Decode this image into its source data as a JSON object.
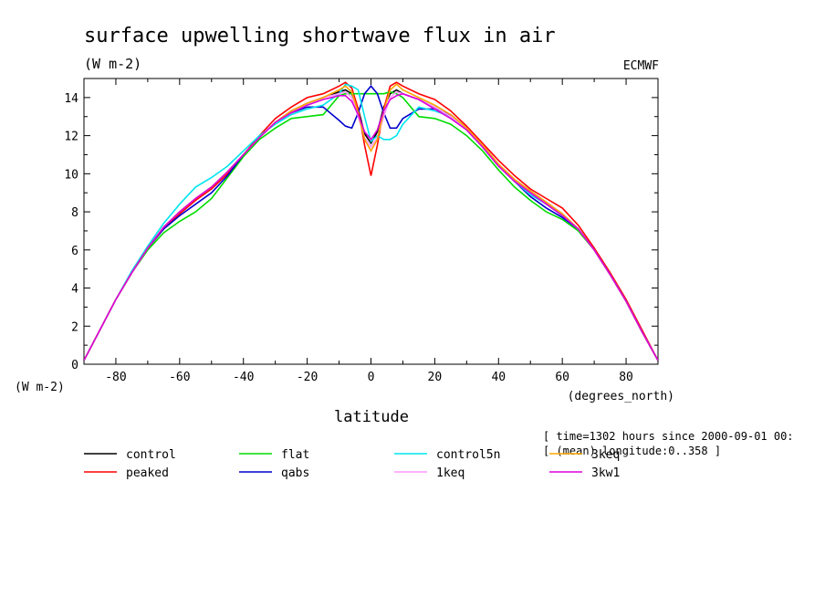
{
  "chart_data": {
    "type": "line",
    "title": "surface upwelling shortwave flux in air",
    "units": "(W m-2)",
    "source": "ECMWF",
    "ylabel": "(W m-2)",
    "xlabel": "latitude",
    "x_units": "(degrees_north)",
    "xlim": [
      -90,
      90
    ],
    "ylim": [
      0,
      15
    ],
    "x_ticks": [
      -80,
      -60,
      -40,
      -20,
      0,
      20,
      40,
      60,
      80
    ],
    "y_ticks": [
      0,
      2,
      4,
      6,
      8,
      10,
      12,
      14
    ],
    "grid": false,
    "legend_position": "bottom",
    "annotations": [
      "[ time=1302 hours since 2000-09-01 00:",
      "[ (mean) longitude:0..358 ]"
    ],
    "x": [
      -90,
      -85,
      -80,
      -75,
      -70,
      -65,
      -60,
      -55,
      -50,
      -45,
      -40,
      -35,
      -30,
      -25,
      -20,
      -15,
      -10,
      -8,
      -6,
      -4,
      -2,
      0,
      2,
      4,
      6,
      8,
      10,
      15,
      20,
      25,
      30,
      35,
      40,
      45,
      50,
      55,
      60,
      65,
      70,
      75,
      80,
      85,
      90
    ],
    "series": [
      {
        "name": "control",
        "color": "#000000",
        "values": [
          0.2,
          1.8,
          3.4,
          4.8,
          6.1,
          7.2,
          8.0,
          8.7,
          9.3,
          10.1,
          11.0,
          11.9,
          12.7,
          13.3,
          13.7,
          14.0,
          14.3,
          14.4,
          14.2,
          13.4,
          12.1,
          11.6,
          12.2,
          13.5,
          14.2,
          14.4,
          14.2,
          13.9,
          13.5,
          13.0,
          12.4,
          11.5,
          10.5,
          9.7,
          9.1,
          8.5,
          7.9,
          7.1,
          6.0,
          4.7,
          3.3,
          1.7,
          0.2
        ]
      },
      {
        "name": "peaked",
        "color": "#ff0000",
        "values": [
          0.2,
          1.8,
          3.4,
          4.8,
          6.1,
          7.1,
          7.9,
          8.6,
          9.2,
          10.0,
          11.0,
          12.0,
          12.9,
          13.5,
          14.0,
          14.2,
          14.6,
          14.8,
          14.5,
          13.4,
          11.5,
          9.9,
          11.5,
          13.4,
          14.6,
          14.8,
          14.6,
          14.2,
          13.9,
          13.3,
          12.5,
          11.6,
          10.7,
          9.9,
          9.2,
          8.7,
          8.2,
          7.3,
          6.1,
          4.8,
          3.4,
          1.8,
          0.2
        ]
      },
      {
        "name": "flat",
        "color": "#00dd00",
        "values": [
          0.2,
          1.8,
          3.4,
          4.8,
          6.0,
          6.9,
          7.5,
          8.0,
          8.7,
          9.8,
          10.9,
          11.8,
          12.4,
          12.9,
          13.0,
          13.1,
          14.1,
          14.2,
          14.2,
          14.2,
          14.2,
          14.2,
          14.2,
          14.2,
          14.3,
          14.2,
          14.0,
          13.0,
          12.9,
          12.6,
          12.0,
          11.2,
          10.2,
          9.3,
          8.6,
          8.0,
          7.6,
          7.0,
          6.0,
          4.7,
          3.3,
          1.7,
          0.2
        ]
      },
      {
        "name": "qabs",
        "color": "#0000cc",
        "values": [
          0.2,
          1.8,
          3.4,
          4.8,
          6.1,
          7.1,
          7.8,
          8.4,
          9.0,
          9.9,
          11.0,
          11.9,
          12.7,
          13.2,
          13.5,
          13.5,
          12.8,
          12.5,
          12.4,
          13.2,
          14.2,
          14.6,
          14.2,
          13.2,
          12.4,
          12.4,
          12.9,
          13.4,
          13.4,
          13.1,
          12.4,
          11.4,
          10.4,
          9.6,
          8.8,
          8.2,
          7.7,
          7.1,
          6.0,
          4.7,
          3.3,
          1.7,
          0.2
        ]
      },
      {
        "name": "control5n",
        "color": "#00e5ee",
        "values": [
          0.2,
          1.8,
          3.4,
          4.9,
          6.2,
          7.4,
          8.4,
          9.3,
          9.8,
          10.4,
          11.2,
          12.0,
          12.6,
          13.1,
          13.4,
          13.6,
          14.2,
          14.7,
          14.6,
          14.4,
          13.0,
          11.7,
          12.0,
          11.8,
          11.8,
          12.0,
          12.6,
          13.5,
          13.3,
          13.0,
          12.3,
          11.4,
          10.4,
          9.6,
          8.9,
          8.4,
          7.8,
          7.1,
          6.0,
          4.7,
          3.3,
          1.7,
          0.2
        ]
      },
      {
        "name": "1keq",
        "color": "#ff99ff",
        "values": [
          0.2,
          1.8,
          3.4,
          4.8,
          6.1,
          7.2,
          8.0,
          8.7,
          9.3,
          10.1,
          11.0,
          11.9,
          12.7,
          13.3,
          13.7,
          14.0,
          14.2,
          14.3,
          14.0,
          13.0,
          11.9,
          11.4,
          11.9,
          13.0,
          14.0,
          14.3,
          14.2,
          13.9,
          13.5,
          13.0,
          12.4,
          11.5,
          10.5,
          9.7,
          9.1,
          8.5,
          7.9,
          7.1,
          6.0,
          4.7,
          3.3,
          1.7,
          0.2
        ]
      },
      {
        "name": "3keq",
        "color": "#ffa500",
        "values": [
          0.2,
          1.8,
          3.4,
          4.8,
          6.1,
          7.2,
          8.0,
          8.7,
          9.3,
          10.1,
          11.0,
          11.9,
          12.7,
          13.3,
          13.7,
          14.0,
          14.4,
          14.6,
          14.3,
          13.2,
          11.8,
          11.2,
          11.8,
          13.3,
          14.4,
          14.7,
          14.4,
          14.0,
          13.6,
          13.1,
          12.4,
          11.5,
          10.5,
          9.7,
          9.1,
          8.5,
          7.9,
          7.1,
          6.0,
          4.7,
          3.3,
          1.7,
          0.2
        ]
      },
      {
        "name": "3kw1",
        "color": "#dd00dd",
        "values": [
          0.2,
          1.8,
          3.4,
          4.8,
          6.1,
          7.2,
          8.0,
          8.7,
          9.3,
          10.1,
          11.0,
          11.9,
          12.7,
          13.2,
          13.6,
          13.9,
          14.1,
          14.1,
          13.8,
          13.1,
          12.2,
          11.8,
          12.3,
          13.3,
          13.9,
          14.1,
          14.2,
          13.9,
          13.4,
          12.9,
          12.3,
          11.4,
          10.4,
          9.6,
          9.0,
          8.4,
          7.8,
          7.1,
          6.0,
          4.7,
          3.3,
          1.7,
          0.2
        ]
      }
    ]
  }
}
